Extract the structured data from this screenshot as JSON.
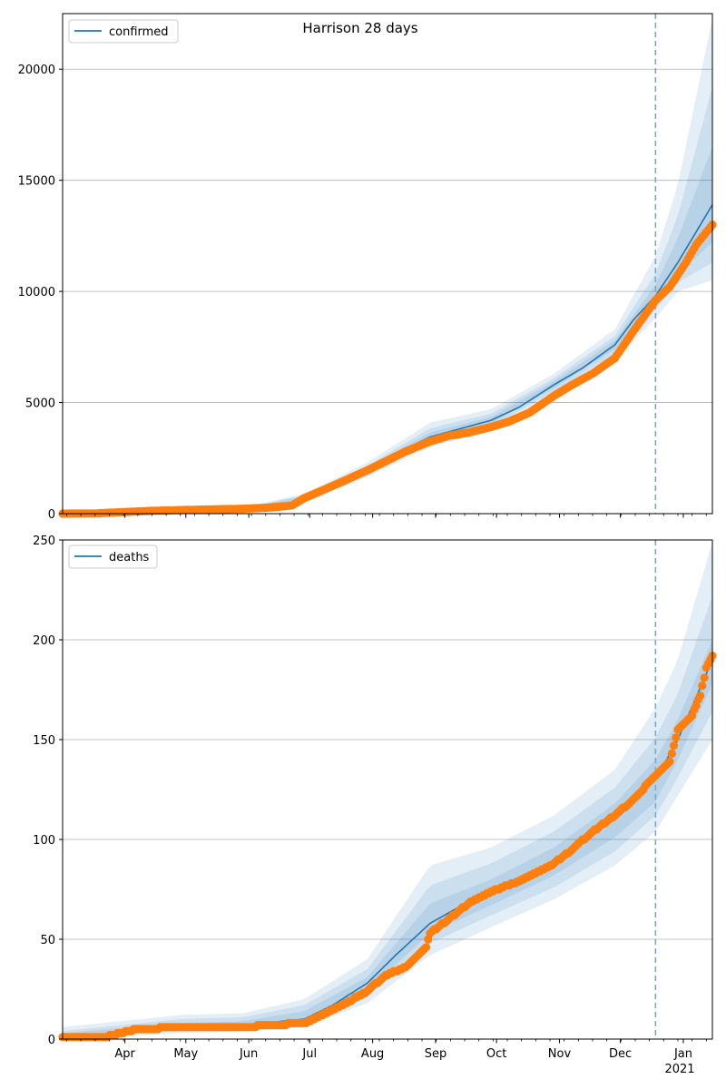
{
  "title": "Harrison 28 days",
  "colors": {
    "line": "#1f77b4",
    "points": "#ff7f0e",
    "band": "#1f77b4",
    "grid": "#b0b0b0",
    "vline": "#77aacc"
  },
  "x_ticks": [
    "Apr",
    "May",
    "Jun",
    "Jul",
    "Aug",
    "Sep",
    "Oct",
    "Nov",
    "Dec",
    "Jan"
  ],
  "x_year_label": "2021",
  "chart_data": [
    {
      "type": "line",
      "series_name": "confirmed",
      "legend_position": "top-left",
      "grid": "horizontal",
      "xlim": [
        "2020-03-04",
        "2021-01-18"
      ],
      "ylim": [
        0,
        22500
      ],
      "y_ticks": [
        0,
        5000,
        10000,
        15000,
        20000
      ],
      "forecast_start": "2020-12-21",
      "model_fit": [
        [
          "2020-03-04",
          0
        ],
        [
          "2020-04-01",
          80
        ],
        [
          "2020-05-01",
          170
        ],
        [
          "2020-06-01",
          230
        ],
        [
          "2020-06-20",
          330
        ],
        [
          "2020-07-01",
          720
        ],
        [
          "2020-07-15",
          1250
        ],
        [
          "2020-08-01",
          1950
        ],
        [
          "2020-08-15",
          2700
        ],
        [
          "2020-09-01",
          3450
        ],
        [
          "2020-09-15",
          3800
        ],
        [
          "2020-10-01",
          4200
        ],
        [
          "2020-10-15",
          4800
        ],
        [
          "2020-11-01",
          5800
        ],
        [
          "2020-11-15",
          6550
        ],
        [
          "2020-12-01",
          7600
        ],
        [
          "2020-12-10",
          8700
        ],
        [
          "2020-12-21",
          9800
        ],
        [
          "2021-01-01",
          11300
        ],
        [
          "2021-01-18",
          13900
        ]
      ],
      "bands": [
        {
          "upper": [
            [
              "2020-03-04",
              0
            ],
            [
              "2020-06-01",
              280
            ],
            [
              "2020-07-01",
              900
            ],
            [
              "2020-08-01",
              2300
            ],
            [
              "2020-09-01",
              4100
            ],
            [
              "2020-10-01",
              4700
            ],
            [
              "2020-11-01",
              6300
            ],
            [
              "2020-12-01",
              8300
            ],
            [
              "2020-12-21",
              11600
            ],
            [
              "2021-01-01",
              14800
            ],
            [
              "2021-01-18",
              22300
            ]
          ],
          "lower": [
            [
              "2020-03-04",
              0
            ],
            [
              "2020-06-01",
              180
            ],
            [
              "2020-07-01",
              560
            ],
            [
              "2020-08-01",
              1650
            ],
            [
              "2020-09-01",
              3000
            ],
            [
              "2020-10-01",
              3750
            ],
            [
              "2020-11-01",
              5300
            ],
            [
              "2020-12-01",
              6900
            ],
            [
              "2020-12-21",
              8800
            ],
            [
              "2021-01-01",
              10000
            ],
            [
              "2021-01-18",
              10500
            ]
          ]
        },
        {
          "upper": [
            [
              "2020-03-04",
              0
            ],
            [
              "2020-06-01",
              260
            ],
            [
              "2020-07-01",
              830
            ],
            [
              "2020-08-01",
              2150
            ],
            [
              "2020-09-01",
              3850
            ],
            [
              "2020-10-01",
              4500
            ],
            [
              "2020-11-01",
              6100
            ],
            [
              "2020-12-01",
              8000
            ],
            [
              "2020-12-21",
              10800
            ],
            [
              "2021-01-01",
              13400
            ],
            [
              "2021-01-18",
              19200
            ]
          ],
          "lower": [
            [
              "2020-03-04",
              0
            ],
            [
              "2020-06-01",
              200
            ],
            [
              "2020-07-01",
              620
            ],
            [
              "2020-08-01",
              1750
            ],
            [
              "2020-09-01",
              3150
            ],
            [
              "2020-10-01",
              3900
            ],
            [
              "2020-11-01",
              5500
            ],
            [
              "2020-12-01",
              7200
            ],
            [
              "2020-12-21",
              9200
            ],
            [
              "2021-01-01",
              10400
            ],
            [
              "2021-01-18",
              11300
            ]
          ]
        },
        {
          "upper": [
            [
              "2020-03-04",
              0
            ],
            [
              "2020-06-01",
              245
            ],
            [
              "2020-07-01",
              780
            ],
            [
              "2020-08-01",
              2050
            ],
            [
              "2020-09-01",
              3650
            ],
            [
              "2020-10-01",
              4350
            ],
            [
              "2020-11-01",
              5950
            ],
            [
              "2020-12-01",
              7800
            ],
            [
              "2020-12-21",
              10300
            ],
            [
              "2021-01-01",
              12400
            ],
            [
              "2021-01-18",
              16500
            ]
          ],
          "lower": [
            [
              "2020-03-04",
              0
            ],
            [
              "2020-06-01",
              215
            ],
            [
              "2020-07-01",
              670
            ],
            [
              "2020-08-01",
              1850
            ],
            [
              "2020-09-01",
              3300
            ],
            [
              "2020-10-01",
              4050
            ],
            [
              "2020-11-01",
              5650
            ],
            [
              "2020-12-01",
              7400
            ],
            [
              "2020-12-21",
              9500
            ],
            [
              "2021-01-01",
              10800
            ],
            [
              "2021-01-18",
              12200
            ]
          ]
        }
      ],
      "observed": [
        [
          "2020-03-04",
          0
        ],
        [
          "2020-03-20",
          10
        ],
        [
          "2020-04-01",
          60
        ],
        [
          "2020-04-15",
          120
        ],
        [
          "2020-05-01",
          160
        ],
        [
          "2020-05-15",
          190
        ],
        [
          "2020-06-01",
          220
        ],
        [
          "2020-06-15",
          280
        ],
        [
          "2020-06-25",
          370
        ],
        [
          "2020-07-01",
          700
        ],
        [
          "2020-07-10",
          1050
        ],
        [
          "2020-07-20",
          1450
        ],
        [
          "2020-08-01",
          1950
        ],
        [
          "2020-08-10",
          2350
        ],
        [
          "2020-08-20",
          2800
        ],
        [
          "2020-09-01",
          3250
        ],
        [
          "2020-09-10",
          3500
        ],
        [
          "2020-09-20",
          3650
        ],
        [
          "2020-10-01",
          3900
        ],
        [
          "2020-10-10",
          4150
        ],
        [
          "2020-10-20",
          4550
        ],
        [
          "2020-11-01",
          5300
        ],
        [
          "2020-11-10",
          5800
        ],
        [
          "2020-11-20",
          6300
        ],
        [
          "2020-12-01",
          7000
        ],
        [
          "2020-12-10",
          8200
        ],
        [
          "2020-12-21",
          9600
        ],
        [
          "2020-12-28",
          10200
        ],
        [
          "2021-01-05",
          11300
        ],
        [
          "2021-01-10",
          12100
        ],
        [
          "2021-01-18",
          13000
        ]
      ]
    },
    {
      "type": "line",
      "series_name": "deaths",
      "legend_position": "top-left",
      "grid": "horizontal",
      "xlim": [
        "2020-03-04",
        "2021-01-18"
      ],
      "ylim": [
        0,
        250
      ],
      "y_ticks": [
        0,
        50,
        100,
        150,
        200,
        250
      ],
      "forecast_start": "2020-12-21",
      "model_fit": [
        [
          "2020-03-04",
          0
        ],
        [
          "2020-04-01",
          3
        ],
        [
          "2020-05-01",
          6
        ],
        [
          "2020-06-01",
          7
        ],
        [
          "2020-07-01",
          10
        ],
        [
          "2020-07-15",
          17
        ],
        [
          "2020-08-01",
          28
        ],
        [
          "2020-08-15",
          42
        ],
        [
          "2020-09-01",
          58
        ],
        [
          "2020-09-15",
          66
        ],
        [
          "2020-10-01",
          73
        ],
        [
          "2020-10-15",
          80
        ],
        [
          "2020-11-01",
          89
        ],
        [
          "2020-11-15",
          99
        ],
        [
          "2020-12-01",
          110
        ],
        [
          "2020-12-10",
          118
        ],
        [
          "2020-12-21",
          130
        ],
        [
          "2021-01-01",
          150
        ],
        [
          "2021-01-18",
          190
        ]
      ],
      "bands": [
        {
          "upper": [
            [
              "2020-03-04",
              6
            ],
            [
              "2020-05-01",
              12
            ],
            [
              "2020-06-01",
              13
            ],
            [
              "2020-07-01",
              20
            ],
            [
              "2020-08-01",
              40
            ],
            [
              "2020-09-01",
              87
            ],
            [
              "2020-10-01",
              96
            ],
            [
              "2020-11-01",
              112
            ],
            [
              "2020-12-01",
              135
            ],
            [
              "2020-12-21",
              166
            ],
            [
              "2021-01-01",
              190
            ],
            [
              "2021-01-18",
              249
            ]
          ],
          "lower": [
            [
              "2020-03-04",
              0
            ],
            [
              "2020-05-01",
              3
            ],
            [
              "2020-06-01",
              4
            ],
            [
              "2020-07-01",
              6
            ],
            [
              "2020-08-01",
              18
            ],
            [
              "2020-09-01",
              42
            ],
            [
              "2020-10-01",
              56
            ],
            [
              "2020-11-01",
              70
            ],
            [
              "2020-12-01",
              87
            ],
            [
              "2020-12-21",
              104
            ],
            [
              "2021-01-01",
              122
            ],
            [
              "2021-01-18",
              150
            ]
          ]
        },
        {
          "upper": [
            [
              "2020-03-04",
              4
            ],
            [
              "2020-05-01",
              10
            ],
            [
              "2020-06-01",
              11
            ],
            [
              "2020-07-01",
              17
            ],
            [
              "2020-08-01",
              35
            ],
            [
              "2020-09-01",
              77
            ],
            [
              "2020-10-01",
              88
            ],
            [
              "2020-11-01",
              104
            ],
            [
              "2020-12-01",
              126
            ],
            [
              "2020-12-21",
              151
            ],
            [
              "2021-01-01",
              173
            ],
            [
              "2021-01-18",
              222
            ]
          ],
          "lower": [
            [
              "2020-03-04",
              1
            ],
            [
              "2020-05-01",
              4
            ],
            [
              "2020-06-01",
              5
            ],
            [
              "2020-07-01",
              8
            ],
            [
              "2020-08-01",
              21
            ],
            [
              "2020-09-01",
              48
            ],
            [
              "2020-10-01",
              62
            ],
            [
              "2020-11-01",
              76
            ],
            [
              "2020-12-01",
              94
            ],
            [
              "2020-12-21",
              112
            ],
            [
              "2021-01-01",
              131
            ],
            [
              "2021-01-18",
              164
            ]
          ]
        },
        {
          "upper": [
            [
              "2020-03-04",
              3
            ],
            [
              "2020-05-01",
              8
            ],
            [
              "2020-06-01",
              9
            ],
            [
              "2020-07-01",
              14
            ],
            [
              "2020-08-01",
              31
            ],
            [
              "2020-09-01",
              68
            ],
            [
              "2020-10-01",
              80
            ],
            [
              "2020-11-01",
              96
            ],
            [
              "2020-12-01",
              118
            ],
            [
              "2020-12-21",
              140
            ],
            [
              "2021-01-01",
              160
            ],
            [
              "2021-01-18",
              200
            ]
          ],
          "lower": [
            [
              "2020-03-04",
              1
            ],
            [
              "2020-05-01",
              5
            ],
            [
              "2020-06-01",
              6
            ],
            [
              "2020-07-01",
              10
            ],
            [
              "2020-08-01",
              24
            ],
            [
              "2020-09-01",
              53
            ],
            [
              "2020-10-01",
              67
            ],
            [
              "2020-11-01",
              82
            ],
            [
              "2020-12-01",
              101
            ],
            [
              "2020-12-21",
              119
            ],
            [
              "2021-01-01",
              140
            ],
            [
              "2021-01-18",
              178
            ]
          ]
        }
      ],
      "observed": [
        [
          "2020-03-04",
          1
        ],
        [
          "2020-03-25",
          1
        ],
        [
          "2020-04-01",
          3
        ],
        [
          "2020-04-10",
          5
        ],
        [
          "2020-05-01",
          6
        ],
        [
          "2020-06-01",
          6
        ],
        [
          "2020-06-15",
          7
        ],
        [
          "2020-07-01",
          8
        ],
        [
          "2020-07-10",
          12
        ],
        [
          "2020-07-20",
          17
        ],
        [
          "2020-08-01",
          24
        ],
        [
          "2020-08-10",
          32
        ],
        [
          "2020-08-20",
          36
        ],
        [
          "2020-08-30",
          46
        ],
        [
          "2020-09-01",
          53
        ],
        [
          "2020-09-10",
          60
        ],
        [
          "2020-09-20",
          68
        ],
        [
          "2020-10-01",
          74
        ],
        [
          "2020-10-15",
          79
        ],
        [
          "2020-11-01",
          88
        ],
        [
          "2020-11-10",
          95
        ],
        [
          "2020-11-20",
          104
        ],
        [
          "2020-12-01",
          112
        ],
        [
          "2020-12-10",
          120
        ],
        [
          "2020-12-21",
          132
        ],
        [
          "2020-12-28",
          139
        ],
        [
          "2021-01-01",
          155
        ],
        [
          "2021-01-08",
          162
        ],
        [
          "2021-01-12",
          172
        ],
        [
          "2021-01-15",
          186
        ],
        [
          "2021-01-18",
          192
        ]
      ]
    }
  ]
}
